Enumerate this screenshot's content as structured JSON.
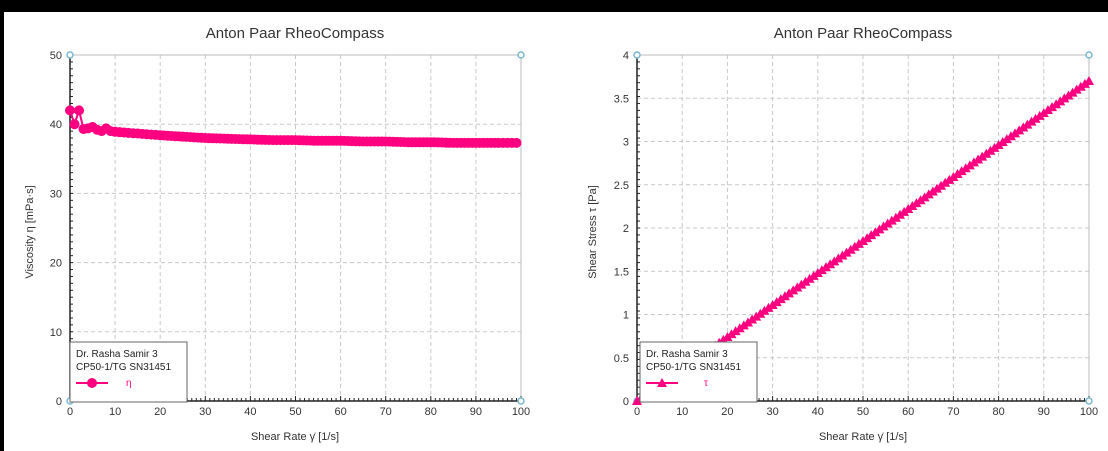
{
  "chart_data": [
    {
      "type": "scatter",
      "title": "Anton Paar RheoCompass",
      "xlabel": "Shear Rate γ̇ [1/s]",
      "ylabel": "Viscosity η [mPa·s]",
      "xlim": [
        0,
        100
      ],
      "ylim": [
        0,
        50
      ],
      "xticks": [
        0,
        10,
        20,
        30,
        40,
        50,
        60,
        70,
        80,
        90,
        100
      ],
      "yticks": [
        0,
        10,
        20,
        30,
        40,
        50
      ],
      "grid": true,
      "legend_placement": "bottom-left",
      "legend_lines": [
        "Dr. Rasha Samir 3",
        "CP50-1/TG SN31451"
      ],
      "series": [
        {
          "name": "η",
          "color": "#ff0080",
          "marker": "circle",
          "x": [
            0,
            1,
            2,
            3,
            4,
            5,
            6,
            7,
            8,
            9,
            10,
            12,
            14,
            16,
            18,
            20,
            25,
            30,
            35,
            40,
            45,
            50,
            55,
            60,
            65,
            70,
            75,
            80,
            85,
            90,
            95,
            99
          ],
          "y": [
            42.0,
            40.0,
            42.0,
            39.3,
            39.4,
            39.6,
            39.2,
            39.0,
            39.4,
            39.0,
            38.9,
            38.8,
            38.7,
            38.6,
            38.5,
            38.4,
            38.2,
            38.0,
            37.9,
            37.8,
            37.7,
            37.7,
            37.6,
            37.6,
            37.5,
            37.5,
            37.4,
            37.4,
            37.3,
            37.3,
            37.3,
            37.3
          ]
        }
      ]
    },
    {
      "type": "scatter",
      "title": "Anton Paar RheoCompass",
      "xlabel": "Shear Rate γ̇ [1/s]",
      "ylabel": "Shear Stress τ [Pa]",
      "xlim": [
        0,
        100
      ],
      "ylim": [
        0,
        4
      ],
      "xticks": [
        0,
        10,
        20,
        30,
        40,
        50,
        60,
        70,
        80,
        90,
        100
      ],
      "yticks": [
        0,
        0.5,
        1,
        1.5,
        2,
        2.5,
        3,
        3.5,
        4
      ],
      "grid": true,
      "legend_placement": "bottom-left",
      "legend_lines": [
        "Dr. Rasha Samir 3",
        "CP50-1/TG SN31451"
      ],
      "series": [
        {
          "name": "τ",
          "color": "#ff0080",
          "marker": "triangle",
          "x": [
            0,
            10,
            20,
            30,
            40,
            50,
            60,
            70,
            80,
            90,
            100
          ],
          "y": [
            0.0,
            0.37,
            0.74,
            1.11,
            1.48,
            1.85,
            2.22,
            2.59,
            2.96,
            3.33,
            3.7
          ]
        }
      ]
    }
  ]
}
